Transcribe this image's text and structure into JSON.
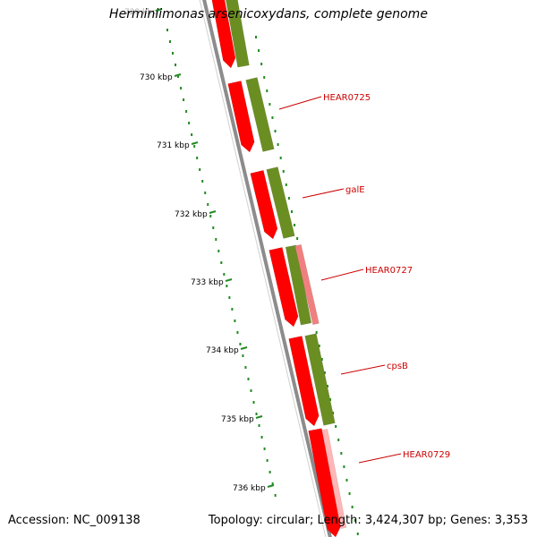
{
  "title": "Herminiimonas arsenicoxydans, complete genome",
  "footer": {
    "accession": "Accession: NC_009138",
    "topology": "Topology: circular; Length: 3,424,307 bp; Genes: 3,353"
  },
  "colors": {
    "backbone": "#8c8c8c",
    "gene_red": "#ff0000",
    "gene_green": "#6b8e23",
    "gene_pink": "#f08080",
    "label": "#cc0000",
    "tick": "#228b22"
  },
  "ticks": [
    {
      "label": "729 kbp"
    },
    {
      "label": "730 kbp"
    },
    {
      "label": "731 kbp"
    },
    {
      "label": "732 kbp"
    },
    {
      "label": "733 kbp"
    },
    {
      "label": "734 kbp"
    },
    {
      "label": "735 kbp"
    },
    {
      "label": "736 kbp"
    }
  ],
  "gene_labels": [
    {
      "name": "HEAR0725"
    },
    {
      "name": "galE"
    },
    {
      "name": "HEAR0727"
    },
    {
      "name": "cpsB"
    },
    {
      "name": "HEAR0729"
    }
  ]
}
